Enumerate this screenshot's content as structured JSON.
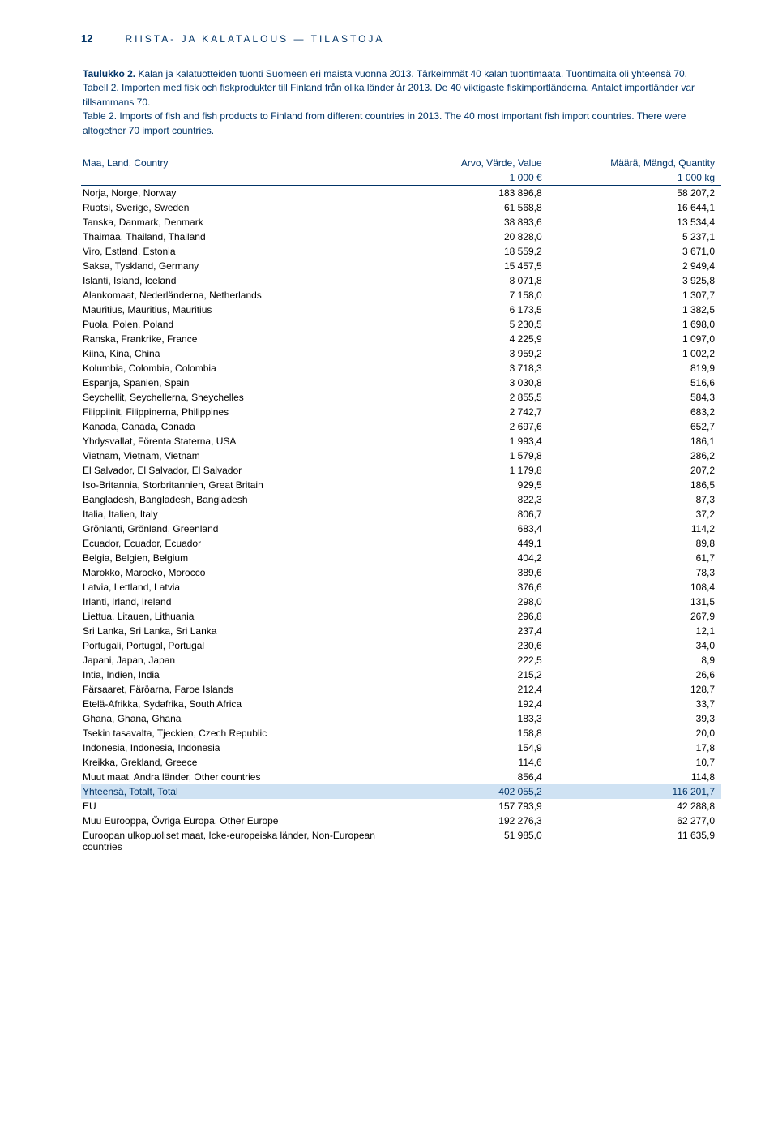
{
  "page_number": "12",
  "running_head": "RIISTA- JA KALATALOUS — TILASTOJA",
  "caption": {
    "fi_lead": "Taulukko 2.",
    "fi": "Kalan ja kalatuotteiden tuonti Suomeen eri maista vuonna 2013. Tärkeimmät 40 kalan tuontimaata. Tuontimaita oli yhteensä 70.",
    "sv_lead": "Tabell 2.",
    "sv": "Importen med fisk och fiskprodukter till Finland från olika länder år 2013. De 40 viktigaste fiskimportländerna. Antalet importländer var tillsammans 70.",
    "en_lead": "Table 2.",
    "en": "Imports of fish and fish products to Finland from different countries in 2013. The 40 most important fish import countries. There were altogether 70 import countries."
  },
  "columns": {
    "country": "Maa, Land, Country",
    "value": "Arvo, Värde, Value",
    "value_unit": "1 000 €",
    "qty": "Määrä, Mängd, Quantity",
    "qty_unit": "1 000 kg"
  },
  "colors": {
    "heading": "#003366",
    "text": "#000000",
    "total_bg": "#cfe2f3",
    "background": "#ffffff"
  },
  "rows": [
    {
      "c": "Norja, Norge, Norway",
      "v": "183 896,8",
      "q": "58 207,2"
    },
    {
      "c": "Ruotsi, Sverige, Sweden",
      "v": "61 568,8",
      "q": "16 644,1"
    },
    {
      "c": "Tanska, Danmark, Denmark",
      "v": "38 893,6",
      "q": "13 534,4"
    },
    {
      "c": "Thaimaa, Thailand, Thailand",
      "v": "20 828,0",
      "q": "5 237,1"
    },
    {
      "c": "Viro, Estland, Estonia",
      "v": "18 559,2",
      "q": "3 671,0"
    },
    {
      "c": "Saksa, Tyskland, Germany",
      "v": "15 457,5",
      "q": "2 949,4"
    },
    {
      "c": "Islanti, Island, Iceland",
      "v": "8 071,8",
      "q": "3 925,8"
    },
    {
      "c": "Alankomaat, Nederländerna, Netherlands",
      "v": "7 158,0",
      "q": "1 307,7"
    },
    {
      "c": "Mauritius, Mauritius, Mauritius",
      "v": "6 173,5",
      "q": "1 382,5"
    },
    {
      "c": "Puola, Polen, Poland",
      "v": "5 230,5",
      "q": "1 698,0"
    },
    {
      "c": "Ranska, Frankrike, France",
      "v": "4 225,9",
      "q": "1 097,0"
    },
    {
      "c": "Kiina, Kina, China",
      "v": "3 959,2",
      "q": "1 002,2"
    },
    {
      "c": "Kolumbia, Colombia, Colombia",
      "v": "3 718,3",
      "q": "819,9"
    },
    {
      "c": "Espanja, Spanien, Spain",
      "v": "3 030,8",
      "q": "516,6"
    },
    {
      "c": "Seychellit, Seychellerna, Sheychelles",
      "v": "2 855,5",
      "q": "584,3"
    },
    {
      "c": "Filippiinit, Filippinerna, Philippines",
      "v": "2 742,7",
      "q": "683,2"
    },
    {
      "c": "Kanada, Canada, Canada",
      "v": "2 697,6",
      "q": "652,7"
    },
    {
      "c": "Yhdysvallat, Förenta Staterna, USA",
      "v": "1 993,4",
      "q": "186,1"
    },
    {
      "c": "Vietnam, Vietnam, Vietnam",
      "v": "1 579,8",
      "q": "286,2"
    },
    {
      "c": "El Salvador, El Salvador, El Salvador",
      "v": "1 179,8",
      "q": "207,2"
    },
    {
      "c": "Iso-Britannia, Storbritannien, Great Britain",
      "v": "929,5",
      "q": "186,5"
    },
    {
      "c": "Bangladesh, Bangladesh, Bangladesh",
      "v": "822,3",
      "q": "87,3"
    },
    {
      "c": "Italia, Italien, Italy",
      "v": "806,7",
      "q": "37,2"
    },
    {
      "c": "Grönlanti, Grönland, Greenland",
      "v": "683,4",
      "q": "114,2"
    },
    {
      "c": "Ecuador, Ecuador, Ecuador",
      "v": "449,1",
      "q": "89,8"
    },
    {
      "c": "Belgia, Belgien, Belgium",
      "v": "404,2",
      "q": "61,7"
    },
    {
      "c": "Marokko, Marocko, Morocco",
      "v": "389,6",
      "q": "78,3"
    },
    {
      "c": "Latvia, Lettland, Latvia",
      "v": "376,6",
      "q": "108,4"
    },
    {
      "c": "Irlanti, Irland, Ireland",
      "v": "298,0",
      "q": "131,5"
    },
    {
      "c": "Liettua, Litauen, Lithuania",
      "v": "296,8",
      "q": "267,9"
    },
    {
      "c": "Sri Lanka, Sri Lanka, Sri Lanka",
      "v": "237,4",
      "q": "12,1"
    },
    {
      "c": "Portugali, Portugal, Portugal",
      "v": "230,6",
      "q": "34,0"
    },
    {
      "c": "Japani, Japan, Japan",
      "v": "222,5",
      "q": "8,9"
    },
    {
      "c": "Intia, Indien, India",
      "v": "215,2",
      "q": "26,6"
    },
    {
      "c": "Färsaaret, Färöarna, Faroe Islands",
      "v": "212,4",
      "q": "128,7"
    },
    {
      "c": "Etelä-Afrikka, Sydafrika, South Africa",
      "v": "192,4",
      "q": "33,7"
    },
    {
      "c": "Ghana, Ghana, Ghana",
      "v": "183,3",
      "q": "39,3"
    },
    {
      "c": "Tsekin tasavalta, Tjeckien, Czech Republic",
      "v": "158,8",
      "q": "20,0"
    },
    {
      "c": "Indonesia, Indonesia, Indonesia",
      "v": "154,9",
      "q": "17,8"
    },
    {
      "c": "Kreikka, Grekland, Greece",
      "v": "114,6",
      "q": "10,7"
    },
    {
      "c": "Muut maat, Andra länder, Other countries",
      "v": "856,4",
      "q": "114,8"
    }
  ],
  "total": {
    "c": "Yhteensä, Totalt, Total",
    "v": "402 055,2",
    "q": "116 201,7"
  },
  "summary": [
    {
      "c": "EU",
      "v": "157 793,9",
      "q": "42 288,8"
    },
    {
      "c": "Muu Eurooppa, Övriga Europa, Other Europe",
      "v": "192 276,3",
      "q": "62 277,0"
    },
    {
      "c": "Euroopan ulkopuoliset maat, Icke-europeiska länder, Non-European countries",
      "v": "51 985,0",
      "q": "11 635,9"
    }
  ]
}
